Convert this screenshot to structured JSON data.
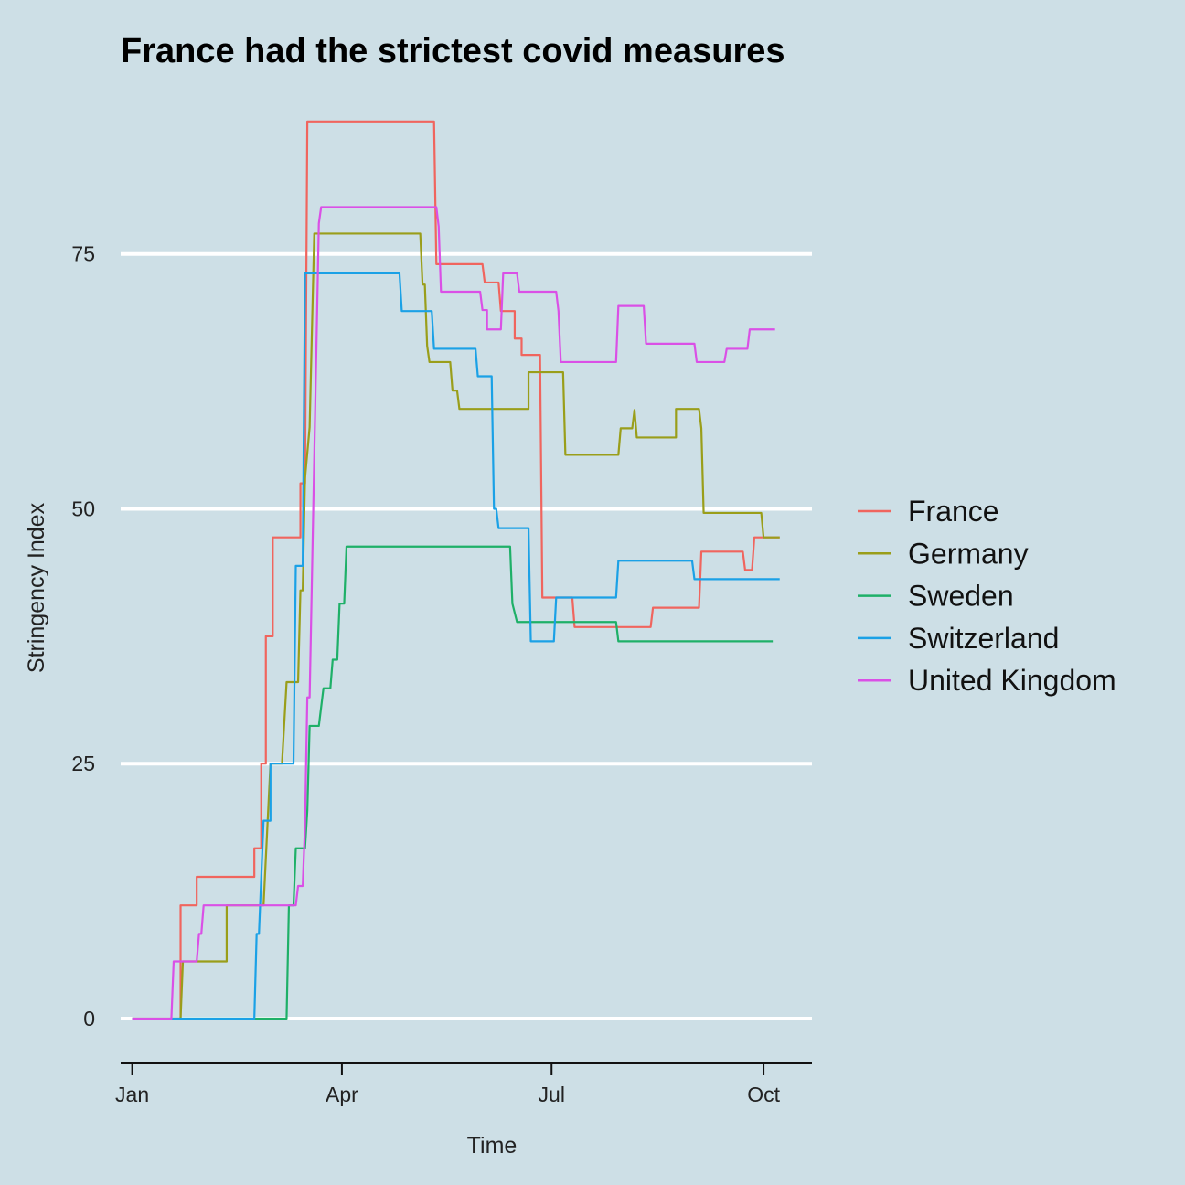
{
  "chart_data": {
    "type": "line",
    "title": "France had the strictest covid measures",
    "xlabel": "Time",
    "ylabel": "Stringency Index",
    "xlim": [
      "2019-12-27",
      "2020-10-22"
    ],
    "ylim": [
      -4.4,
      91.3
    ],
    "yticks": [
      0,
      25,
      50,
      75
    ],
    "xticks": [
      {
        "label": "Jan",
        "date": "2020-01-01"
      },
      {
        "label": "Apr",
        "date": "2020-04-01"
      },
      {
        "label": "Jul",
        "date": "2020-07-01"
      },
      {
        "label": "Oct",
        "date": "2020-10-01"
      }
    ],
    "grid": "horizontal",
    "legend_position": "right",
    "series": [
      {
        "name": "France",
        "color": "#f0655e",
        "points": [
          [
            "2020-01-01",
            0
          ],
          [
            "2020-01-22",
            0
          ],
          [
            "2020-01-22",
            11.1
          ],
          [
            "2020-01-29",
            11.1
          ],
          [
            "2020-01-29",
            13.9
          ],
          [
            "2020-02-23",
            13.9
          ],
          [
            "2020-02-23",
            16.7
          ],
          [
            "2020-02-26",
            16.7
          ],
          [
            "2020-02-26",
            25
          ],
          [
            "2020-02-28",
            25
          ],
          [
            "2020-02-28",
            37.5
          ],
          [
            "2020-03-02",
            37.5
          ],
          [
            "2020-03-02",
            47.2
          ],
          [
            "2020-03-14",
            47.2
          ],
          [
            "2020-03-14",
            52.5
          ],
          [
            "2020-03-16",
            52.5
          ],
          [
            "2020-03-17",
            88
          ],
          [
            "2020-05-11",
            88
          ],
          [
            "2020-05-12",
            74
          ],
          [
            "2020-05-20",
            74
          ],
          [
            "2020-05-20",
            74
          ],
          [
            "2020-06-01",
            74
          ],
          [
            "2020-06-02",
            72.2
          ],
          [
            "2020-06-08",
            72.2
          ],
          [
            "2020-06-09",
            69.4
          ],
          [
            "2020-06-15",
            69.4
          ],
          [
            "2020-06-15",
            66.7
          ],
          [
            "2020-06-18",
            66.7
          ],
          [
            "2020-06-18",
            65.1
          ],
          [
            "2020-06-26",
            65.1
          ],
          [
            "2020-06-27",
            41.3
          ],
          [
            "2020-07-10",
            41.3
          ],
          [
            "2020-07-11",
            38.4
          ],
          [
            "2020-08-13",
            38.4
          ],
          [
            "2020-08-14",
            40.3
          ],
          [
            "2020-09-03",
            40.3
          ],
          [
            "2020-09-04",
            45.8
          ],
          [
            "2020-09-22",
            45.8
          ],
          [
            "2020-09-23",
            44
          ],
          [
            "2020-09-26",
            44
          ],
          [
            "2020-09-27",
            47.2
          ],
          [
            "2020-10-08",
            47.2
          ]
        ]
      },
      {
        "name": "Germany",
        "color": "#9a9e1a",
        "points": [
          [
            "2020-01-01",
            0
          ],
          [
            "2020-01-22",
            0
          ],
          [
            "2020-01-23",
            5.6
          ],
          [
            "2020-02-11",
            5.6
          ],
          [
            "2020-02-11",
            11.1
          ],
          [
            "2020-02-27",
            11.1
          ],
          [
            "2020-03-01",
            25
          ],
          [
            "2020-03-06",
            25
          ],
          [
            "2020-03-08",
            33
          ],
          [
            "2020-03-13",
            33
          ],
          [
            "2020-03-14",
            42
          ],
          [
            "2020-03-15",
            42
          ],
          [
            "2020-03-16",
            53
          ],
          [
            "2020-03-18",
            58
          ],
          [
            "2020-03-20",
            77
          ],
          [
            "2020-05-05",
            77
          ],
          [
            "2020-05-06",
            72
          ],
          [
            "2020-05-07",
            72
          ],
          [
            "2020-05-08",
            66
          ],
          [
            "2020-05-09",
            64.4
          ],
          [
            "2020-05-18",
            64.4
          ],
          [
            "2020-05-19",
            61.6
          ],
          [
            "2020-05-21",
            61.6
          ],
          [
            "2020-05-22",
            59.8
          ],
          [
            "2020-06-21",
            59.8
          ],
          [
            "2020-06-21",
            63.4
          ],
          [
            "2020-07-06",
            63.4
          ],
          [
            "2020-07-07",
            55.3
          ],
          [
            "2020-07-30",
            55.3
          ],
          [
            "2020-07-31",
            57.9
          ],
          [
            "2020-08-05",
            57.9
          ],
          [
            "2020-08-06",
            59.7
          ],
          [
            "2020-08-07",
            57
          ],
          [
            "2020-08-24",
            57
          ],
          [
            "2020-08-24",
            59.8
          ],
          [
            "2020-09-03",
            59.8
          ],
          [
            "2020-09-04",
            57.9
          ],
          [
            "2020-09-05",
            49.6
          ],
          [
            "2020-09-30",
            49.6
          ],
          [
            "2020-10-01",
            47.2
          ],
          [
            "2020-10-08",
            47.2
          ]
        ]
      },
      {
        "name": "Sweden",
        "color": "#1eb068",
        "points": [
          [
            "2020-01-01",
            0
          ],
          [
            "2020-03-08",
            0
          ],
          [
            "2020-03-09",
            11.1
          ],
          [
            "2020-03-11",
            11.1
          ],
          [
            "2020-03-12",
            16.7
          ],
          [
            "2020-03-16",
            16.7
          ],
          [
            "2020-03-17",
            20.4
          ],
          [
            "2020-03-18",
            28.7
          ],
          [
            "2020-03-22",
            28.7
          ],
          [
            "2020-03-24",
            32.4
          ],
          [
            "2020-03-27",
            32.4
          ],
          [
            "2020-03-28",
            35.2
          ],
          [
            "2020-03-30",
            35.2
          ],
          [
            "2020-03-31",
            40.7
          ],
          [
            "2020-04-02",
            40.7
          ],
          [
            "2020-04-03",
            46.3
          ],
          [
            "2020-06-13",
            46.3
          ],
          [
            "2020-06-14",
            40.7
          ],
          [
            "2020-06-16",
            38.9
          ],
          [
            "2020-07-29",
            38.9
          ],
          [
            "2020-07-30",
            37
          ],
          [
            "2020-10-05",
            37
          ]
        ]
      },
      {
        "name": "Switzerland",
        "color": "#1ba1e6",
        "points": [
          [
            "2020-01-01",
            0
          ],
          [
            "2020-02-23",
            0
          ],
          [
            "2020-02-24",
            8.3
          ],
          [
            "2020-02-25",
            8.3
          ],
          [
            "2020-02-27",
            19.4
          ],
          [
            "2020-03-01",
            19.4
          ],
          [
            "2020-03-01",
            25
          ],
          [
            "2020-03-11",
            25
          ],
          [
            "2020-03-12",
            44.4
          ],
          [
            "2020-03-15",
            44.4
          ],
          [
            "2020-03-16",
            73.1
          ],
          [
            "2020-04-26",
            73.1
          ],
          [
            "2020-04-27",
            69.4
          ],
          [
            "2020-05-10",
            69.4
          ],
          [
            "2020-05-11",
            65.7
          ],
          [
            "2020-05-29",
            65.7
          ],
          [
            "2020-05-30",
            63
          ],
          [
            "2020-06-05",
            63
          ],
          [
            "2020-06-06",
            50
          ],
          [
            "2020-06-07",
            50
          ],
          [
            "2020-06-08",
            48.1
          ],
          [
            "2020-06-21",
            48.1
          ],
          [
            "2020-06-22",
            37
          ],
          [
            "2020-07-02",
            37
          ],
          [
            "2020-07-03",
            41.3
          ],
          [
            "2020-07-29",
            41.3
          ],
          [
            "2020-07-30",
            44.9
          ],
          [
            "2020-08-31",
            44.9
          ],
          [
            "2020-09-01",
            43.1
          ],
          [
            "2020-10-08",
            43.1
          ]
        ]
      },
      {
        "name": "United Kingdom",
        "color": "#da50e6",
        "points": [
          [
            "2020-01-01",
            0
          ],
          [
            "2020-01-18",
            0
          ],
          [
            "2020-01-19",
            5.6
          ],
          [
            "2020-01-29",
            5.6
          ],
          [
            "2020-01-30",
            8.3
          ],
          [
            "2020-01-31",
            8.3
          ],
          [
            "2020-02-01",
            11.1
          ],
          [
            "2020-03-12",
            11.1
          ],
          [
            "2020-03-13",
            13
          ],
          [
            "2020-03-15",
            13
          ],
          [
            "2020-03-16",
            19
          ],
          [
            "2020-03-17",
            31.5
          ],
          [
            "2020-03-18",
            31.5
          ],
          [
            "2020-03-20",
            55
          ],
          [
            "2020-03-22",
            78
          ],
          [
            "2020-03-23",
            79.6
          ],
          [
            "2020-05-12",
            79.6
          ],
          [
            "2020-05-13",
            77.7
          ],
          [
            "2020-05-14",
            71.3
          ],
          [
            "2020-05-31",
            71.3
          ],
          [
            "2020-06-01",
            69.5
          ],
          [
            "2020-06-03",
            69.5
          ],
          [
            "2020-06-03",
            67.6
          ],
          [
            "2020-06-09",
            67.6
          ],
          [
            "2020-06-10",
            73.1
          ],
          [
            "2020-06-16",
            73.1
          ],
          [
            "2020-06-17",
            71.3
          ],
          [
            "2020-07-03",
            71.3
          ],
          [
            "2020-07-04",
            69.4
          ],
          [
            "2020-07-05",
            64.4
          ],
          [
            "2020-07-29",
            64.4
          ],
          [
            "2020-07-30",
            69.9
          ],
          [
            "2020-08-10",
            69.9
          ],
          [
            "2020-08-11",
            66.2
          ],
          [
            "2020-09-01",
            66.2
          ],
          [
            "2020-09-02",
            64.4
          ],
          [
            "2020-09-14",
            64.4
          ],
          [
            "2020-09-15",
            65.7
          ],
          [
            "2020-09-24",
            65.7
          ],
          [
            "2020-09-25",
            67.6
          ],
          [
            "2020-10-06",
            67.6
          ]
        ]
      }
    ]
  }
}
